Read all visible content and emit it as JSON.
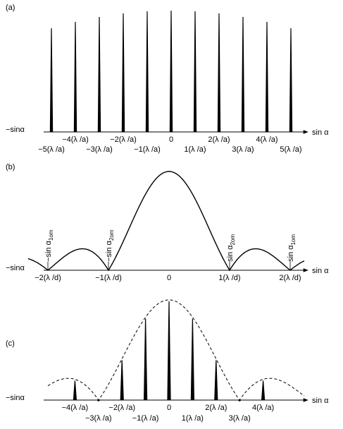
{
  "panels": [
    {
      "label": "(a)",
      "axis_left": "−sinα",
      "axis_right": "sin α",
      "upper_ticks": [
        "−4(λ /a)",
        "−2(λ /a)",
        "0",
        "2(λ /a)",
        "4(λ /a)"
      ],
      "lower_ticks": [
        "−5(λ /a)",
        "−3(λ /a)",
        "−1(λ /a)",
        "1(λ /a)",
        "3(λ /a)",
        "5(λ /a)"
      ]
    },
    {
      "label": "(b)",
      "axis_left": "−sinα",
      "axis_right": "sin α",
      "ticks": [
        "−2(λ /d)",
        "−1(λ /d)",
        "0",
        "1(λ /d)",
        "2(λ /d)"
      ],
      "minima_labels": [
        {
          "main": "−sin α",
          "sub": "1om"
        },
        {
          "main": "−sin α",
          "sub": "2om"
        },
        {
          "main": "sin α",
          "sub": "2om"
        },
        {
          "main": "sin α",
          "sub": "1om"
        }
      ]
    },
    {
      "label": "(c)",
      "axis_left": "−sinα",
      "axis_right": "sin α",
      "upper_ticks": [
        "−4(λ /a)",
        "−2(λ /a)",
        "0",
        "2(λ /a)",
        "4(λ /a)"
      ],
      "lower_ticks": [
        "−3(λ /a)",
        "−1(λ /a)",
        "1(λ /a)",
        "3(λ /a)"
      ]
    }
  ]
}
